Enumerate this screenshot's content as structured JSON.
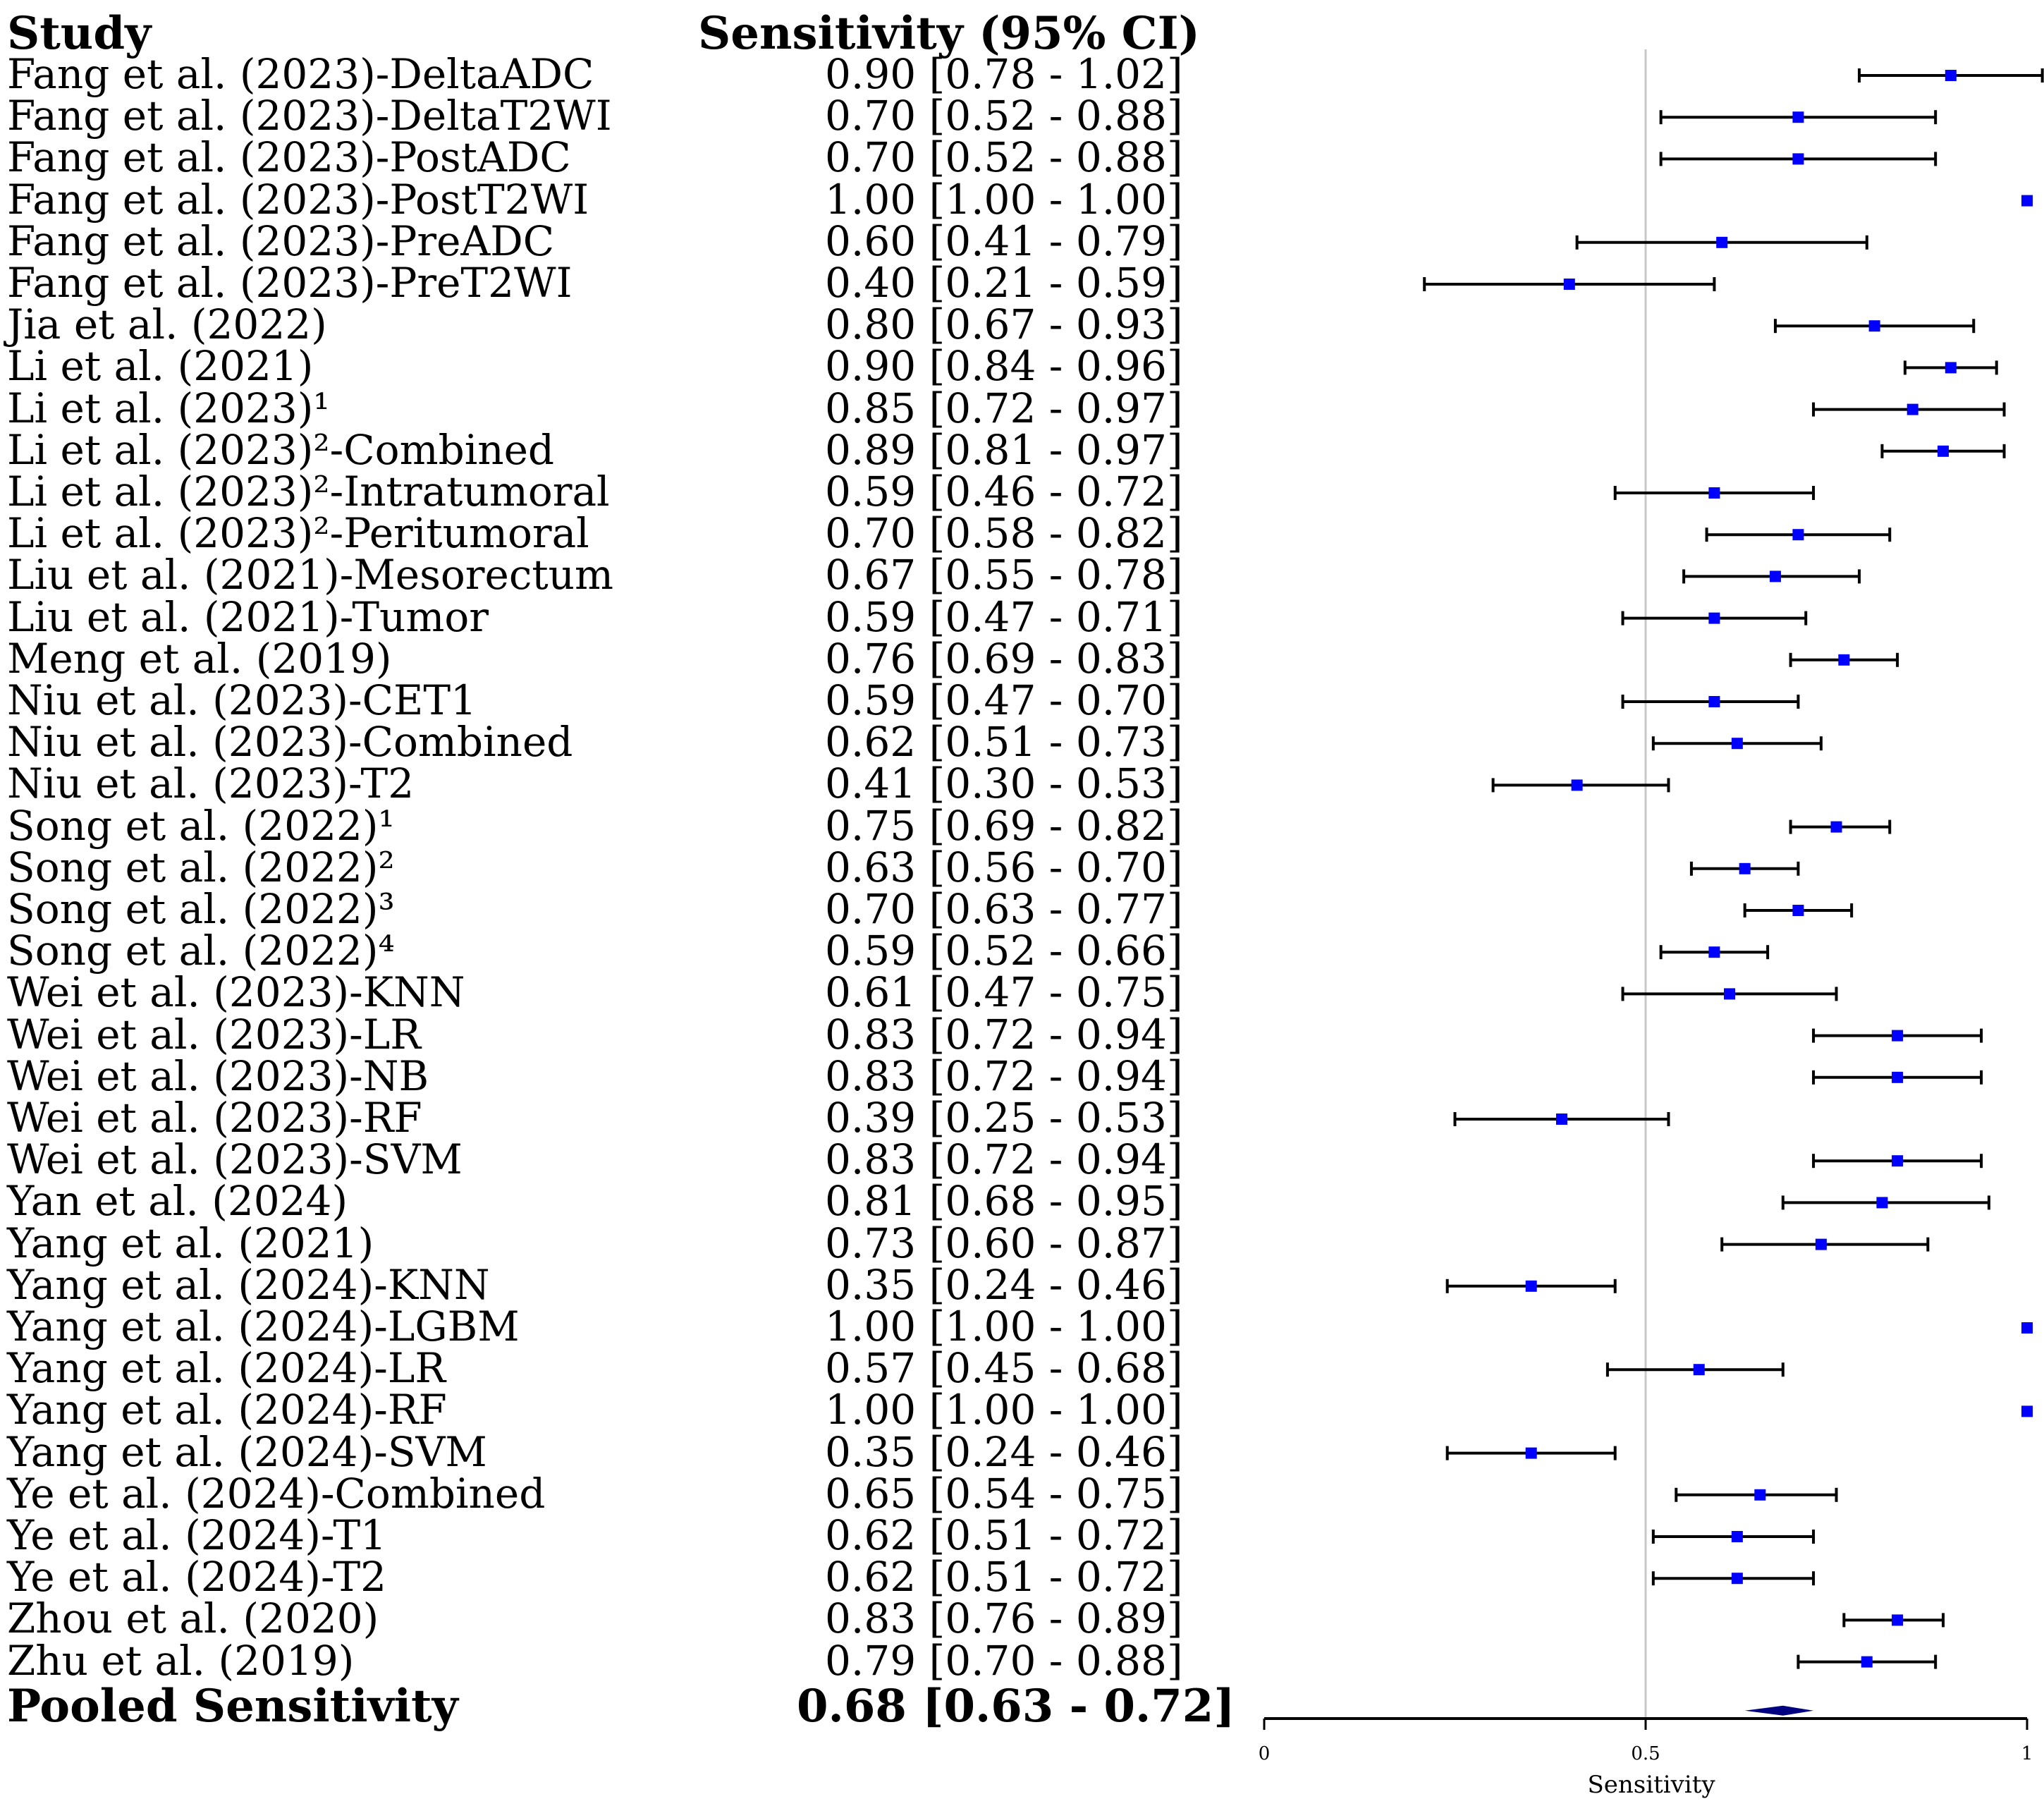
{
  "chart_data": {
    "type": "forest",
    "header": {
      "study": "Study",
      "estimate": "Sensitivity (95% CI)"
    },
    "studies": [
      {
        "label": "Fang et al. (2023)-DeltaADC",
        "value": 0.9,
        "lo": 0.78,
        "hi": 1.02,
        "ci_text": "0.90 [0.78 - 1.02]"
      },
      {
        "label": "Fang et al. (2023)-DeltaT2WI",
        "value": 0.7,
        "lo": 0.52,
        "hi": 0.88,
        "ci_text": "0.70 [0.52 - 0.88]"
      },
      {
        "label": "Fang et al. (2023)-PostADC",
        "value": 0.7,
        "lo": 0.52,
        "hi": 0.88,
        "ci_text": "0.70 [0.52 - 0.88]"
      },
      {
        "label": "Fang et al. (2023)-PostT2WI",
        "value": 1.0,
        "lo": 1.0,
        "hi": 1.0,
        "ci_text": "1.00 [1.00 - 1.00]"
      },
      {
        "label": "Fang et al. (2023)-PreADC",
        "value": 0.6,
        "lo": 0.41,
        "hi": 0.79,
        "ci_text": "0.60 [0.41 - 0.79]"
      },
      {
        "label": "Fang et al. (2023)-PreT2WI",
        "value": 0.4,
        "lo": 0.21,
        "hi": 0.59,
        "ci_text": "0.40 [0.21 - 0.59]"
      },
      {
        "label": "Jia et al. (2022)",
        "value": 0.8,
        "lo": 0.67,
        "hi": 0.93,
        "ci_text": "0.80 [0.67 - 0.93]"
      },
      {
        "label": "Li et al. (2021)",
        "value": 0.9,
        "lo": 0.84,
        "hi": 0.96,
        "ci_text": "0.90 [0.84 - 0.96]"
      },
      {
        "label": "Li et al. (2023)¹",
        "value": 0.85,
        "lo": 0.72,
        "hi": 0.97,
        "ci_text": "0.85 [0.72 - 0.97]"
      },
      {
        "label": "Li et al. (2023)²-Combined",
        "value": 0.89,
        "lo": 0.81,
        "hi": 0.97,
        "ci_text": "0.89 [0.81 - 0.97]"
      },
      {
        "label": "Li et al. (2023)²-Intratumoral",
        "value": 0.59,
        "lo": 0.46,
        "hi": 0.72,
        "ci_text": "0.59 [0.46 - 0.72]"
      },
      {
        "label": "Li et al. (2023)²-Peritumoral",
        "value": 0.7,
        "lo": 0.58,
        "hi": 0.82,
        "ci_text": "0.70 [0.58 - 0.82]"
      },
      {
        "label": "Liu et al. (2021)-Mesorectum",
        "value": 0.67,
        "lo": 0.55,
        "hi": 0.78,
        "ci_text": "0.67 [0.55 - 0.78]"
      },
      {
        "label": "Liu et al. (2021)-Tumor",
        "value": 0.59,
        "lo": 0.47,
        "hi": 0.71,
        "ci_text": "0.59 [0.47 - 0.71]"
      },
      {
        "label": "Meng et al. (2019)",
        "value": 0.76,
        "lo": 0.69,
        "hi": 0.83,
        "ci_text": "0.76 [0.69 - 0.83]"
      },
      {
        "label": "Niu et al. (2023)-CET1",
        "value": 0.59,
        "lo": 0.47,
        "hi": 0.7,
        "ci_text": "0.59 [0.47 - 0.70]"
      },
      {
        "label": "Niu et al. (2023)-Combined",
        "value": 0.62,
        "lo": 0.51,
        "hi": 0.73,
        "ci_text": "0.62 [0.51 - 0.73]"
      },
      {
        "label": "Niu et al. (2023)-T2",
        "value": 0.41,
        "lo": 0.3,
        "hi": 0.53,
        "ci_text": "0.41 [0.30 - 0.53]"
      },
      {
        "label": "Song et al. (2022)¹",
        "value": 0.75,
        "lo": 0.69,
        "hi": 0.82,
        "ci_text": "0.75 [0.69 - 0.82]"
      },
      {
        "label": "Song et al. (2022)²",
        "value": 0.63,
        "lo": 0.56,
        "hi": 0.7,
        "ci_text": "0.63 [0.56 - 0.70]"
      },
      {
        "label": "Song et al. (2022)³",
        "value": 0.7,
        "lo": 0.63,
        "hi": 0.77,
        "ci_text": "0.70 [0.63 - 0.77]"
      },
      {
        "label": "Song et al. (2022)⁴",
        "value": 0.59,
        "lo": 0.52,
        "hi": 0.66,
        "ci_text": "0.59 [0.52 - 0.66]"
      },
      {
        "label": "Wei et al. (2023)-KNN",
        "value": 0.61,
        "lo": 0.47,
        "hi": 0.75,
        "ci_text": "0.61 [0.47 - 0.75]"
      },
      {
        "label": "Wei et al. (2023)-LR",
        "value": 0.83,
        "lo": 0.72,
        "hi": 0.94,
        "ci_text": "0.83 [0.72 - 0.94]"
      },
      {
        "label": "Wei et al. (2023)-NB",
        "value": 0.83,
        "lo": 0.72,
        "hi": 0.94,
        "ci_text": "0.83 [0.72 - 0.94]"
      },
      {
        "label": "Wei et al. (2023)-RF",
        "value": 0.39,
        "lo": 0.25,
        "hi": 0.53,
        "ci_text": "0.39 [0.25 - 0.53]"
      },
      {
        "label": "Wei et al. (2023)-SVM",
        "value": 0.83,
        "lo": 0.72,
        "hi": 0.94,
        "ci_text": "0.83 [0.72 - 0.94]"
      },
      {
        "label": "Yan et al. (2024)",
        "value": 0.81,
        "lo": 0.68,
        "hi": 0.95,
        "ci_text": "0.81 [0.68 - 0.95]"
      },
      {
        "label": "Yang et al. (2021)",
        "value": 0.73,
        "lo": 0.6,
        "hi": 0.87,
        "ci_text": "0.73 [0.60 - 0.87]"
      },
      {
        "label": "Yang et al. (2024)-KNN",
        "value": 0.35,
        "lo": 0.24,
        "hi": 0.46,
        "ci_text": "0.35 [0.24 - 0.46]"
      },
      {
        "label": "Yang et al. (2024)-LGBM",
        "value": 1.0,
        "lo": 1.0,
        "hi": 1.0,
        "ci_text": "1.00 [1.00 - 1.00]"
      },
      {
        "label": "Yang et al. (2024)-LR",
        "value": 0.57,
        "lo": 0.45,
        "hi": 0.68,
        "ci_text": "0.57 [0.45 - 0.68]"
      },
      {
        "label": "Yang et al. (2024)-RF",
        "value": 1.0,
        "lo": 1.0,
        "hi": 1.0,
        "ci_text": "1.00 [1.00 - 1.00]"
      },
      {
        "label": "Yang et al. (2024)-SVM",
        "value": 0.35,
        "lo": 0.24,
        "hi": 0.46,
        "ci_text": "0.35 [0.24 - 0.46]"
      },
      {
        "label": "Ye et al. (2024)-Combined",
        "value": 0.65,
        "lo": 0.54,
        "hi": 0.75,
        "ci_text": "0.65 [0.54 - 0.75]"
      },
      {
        "label": "Ye et al. (2024)-T1",
        "value": 0.62,
        "lo": 0.51,
        "hi": 0.72,
        "ci_text": "0.62 [0.51 - 0.72]"
      },
      {
        "label": "Ye et al. (2024)-T2",
        "value": 0.62,
        "lo": 0.51,
        "hi": 0.72,
        "ci_text": "0.62 [0.51 - 0.72]"
      },
      {
        "label": "Zhou et al. (2020)",
        "value": 0.83,
        "lo": 0.76,
        "hi": 0.89,
        "ci_text": "0.83 [0.76 - 0.89]"
      },
      {
        "label": "Zhu et al. (2019)",
        "value": 0.79,
        "lo": 0.7,
        "hi": 0.88,
        "ci_text": "0.79 [0.70 - 0.88]"
      }
    ],
    "pooled": {
      "label": "Pooled Sensitivity",
      "value": 0.68,
      "lo": 0.63,
      "hi": 0.72,
      "ci_text": "0.68 [0.63 - 0.72]"
    },
    "xlim": [
      0,
      1
    ],
    "xticks": [
      0,
      0.5,
      1
    ],
    "xtick_labels": [
      "0",
      "0.5",
      "1"
    ],
    "reference_line": 0.5,
    "xlabel": "Sensitivity",
    "colors": {
      "point": "#0000ff",
      "pooled": "#000080",
      "ci": "#000000",
      "ref_line": "#c8c8c8",
      "axis": "#000000"
    }
  }
}
